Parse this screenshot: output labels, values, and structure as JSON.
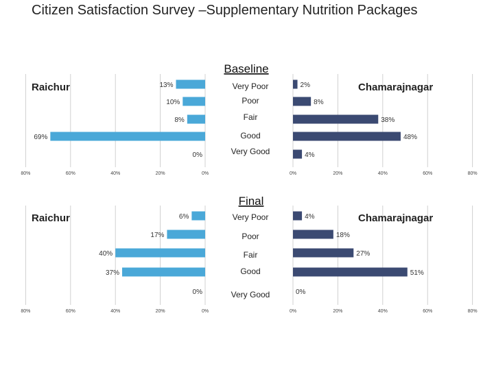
{
  "page": {
    "title": "Citizen Satisfaction Survey –Supplementary Nutrition Packages"
  },
  "chart_data": [
    {
      "type": "bar",
      "title": "Baseline",
      "categories": [
        "Very Poor",
        "Poor",
        "Fair",
        "Good",
        "Very Good"
      ],
      "series": [
        {
          "name": "Raichur",
          "values": [
            13,
            10,
            8,
            69,
            0
          ],
          "labels": [
            "13%",
            "10%",
            "8%",
            "69%",
            "0%"
          ],
          "color": "#4aa8d8"
        },
        {
          "name": "Chamarajnagar",
          "values": [
            2,
            8,
            38,
            48,
            4
          ],
          "labels": [
            "2%",
            "8%",
            "38%",
            "48%",
            "4%"
          ],
          "color": "#3b4a72"
        }
      ],
      "left_ticks": [
        "80%",
        "60%",
        "40%",
        "20%",
        "0%"
      ],
      "right_ticks": [
        "0%",
        "20%",
        "40%",
        "60%",
        "80%"
      ],
      "xlim": [
        0,
        80
      ],
      "grid": true,
      "orientation": "horizontal-butterfly"
    },
    {
      "type": "bar",
      "title": "Final",
      "categories": [
        "Very Poor",
        "Poor",
        "Fair",
        "Good",
        "Very Good"
      ],
      "series": [
        {
          "name": "Raichur",
          "values": [
            6,
            17,
            40,
            37,
            0
          ],
          "labels": [
            "6%",
            "17%",
            "40%",
            "37%",
            "0%"
          ],
          "color": "#4aa8d8"
        },
        {
          "name": "Chamarajnagar",
          "values": [
            4,
            18,
            27,
            51,
            0
          ],
          "labels": [
            "4%",
            "18%",
            "27%",
            "51%",
            "0%"
          ],
          "color": "#3b4a72"
        }
      ],
      "left_ticks": [
        "80%",
        "60%",
        "40%",
        "20%",
        "0%"
      ],
      "right_ticks": [
        "0%",
        "20%",
        "40%",
        "60%",
        "80%"
      ],
      "xlim": [
        0,
        80
      ],
      "grid": true,
      "orientation": "horizontal-butterfly"
    }
  ]
}
